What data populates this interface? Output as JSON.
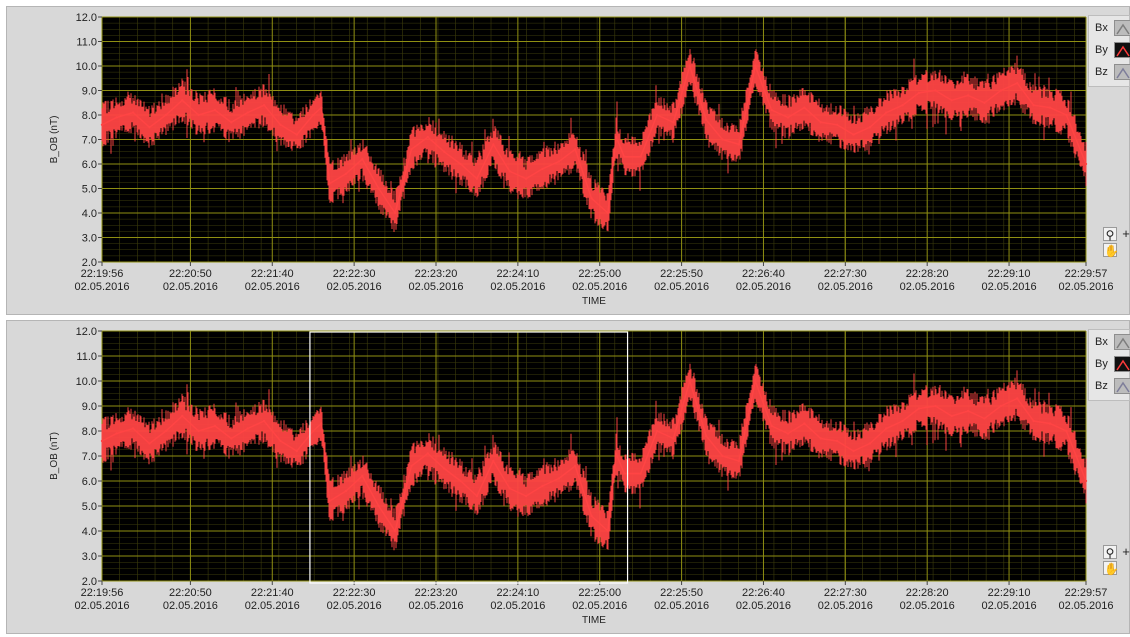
{
  "chart_data": [
    {
      "type": "line",
      "title": "",
      "xlabel": "TIME",
      "ylabel": "B_OB (nT)",
      "ylim": [
        2.0,
        12.0
      ],
      "yticks": [
        "2.0",
        "3.0",
        "4.0",
        "5.0",
        "6.0",
        "7.0",
        "8.0",
        "9.0",
        "10.0",
        "11.0",
        "12.0"
      ],
      "xticks": [
        {
          "time": "22:19:56",
          "date": "02.05.2016"
        },
        {
          "time": "22:20:50",
          "date": "02.05.2016"
        },
        {
          "time": "22:21:40",
          "date": "02.05.2016"
        },
        {
          "time": "22:22:30",
          "date": "02.05.2016"
        },
        {
          "time": "22:23:20",
          "date": "02.05.2016"
        },
        {
          "time": "22:24:10",
          "date": "02.05.2016"
        },
        {
          "time": "22:25:00",
          "date": "02.05.2016"
        },
        {
          "time": "22:25:50",
          "date": "02.05.2016"
        },
        {
          "time": "22:26:40",
          "date": "02.05.2016"
        },
        {
          "time": "22:27:30",
          "date": "02.05.2016"
        },
        {
          "time": "22:28:20",
          "date": "02.05.2016"
        },
        {
          "time": "22:29:10",
          "date": "02.05.2016"
        },
        {
          "time": "22:29:57",
          "date": "02.05.2016"
        }
      ],
      "grid": true,
      "legend_position": "right",
      "legend": [
        "Bx",
        "By",
        "Bz"
      ],
      "plot_background": "#000000",
      "grid_color": "#8f8f12",
      "series": [
        {
          "name": "By",
          "color": "#ff4444",
          "x": [
            "22:19:56",
            "22:20:05",
            "22:20:15",
            "22:20:25",
            "22:20:35",
            "22:20:45",
            "22:20:55",
            "22:21:05",
            "22:21:15",
            "22:21:25",
            "22:21:35",
            "22:21:45",
            "22:21:55",
            "22:22:05",
            "22:22:10",
            "22:22:15",
            "22:22:25",
            "22:22:35",
            "22:22:45",
            "22:22:55",
            "22:23:05",
            "22:23:15",
            "22:23:25",
            "22:23:35",
            "22:23:45",
            "22:23:55",
            "22:24:05",
            "22:24:15",
            "22:24:25",
            "22:24:35",
            "22:24:45",
            "22:24:55",
            "22:25:05",
            "22:25:10",
            "22:25:15",
            "22:25:25",
            "22:25:35",
            "22:25:45",
            "22:25:55",
            "22:26:05",
            "22:26:15",
            "22:26:25",
            "22:26:35",
            "22:26:45",
            "22:26:55",
            "22:27:05",
            "22:27:15",
            "22:27:25",
            "22:27:35",
            "22:27:45",
            "22:27:55",
            "22:28:05",
            "22:28:15",
            "22:28:25",
            "22:28:35",
            "22:28:45",
            "22:28:55",
            "22:29:05",
            "22:29:15",
            "22:29:25",
            "22:29:35",
            "22:29:45",
            "22:29:57"
          ],
          "y": [
            7.6,
            7.9,
            8.1,
            7.5,
            8.0,
            8.6,
            8.0,
            8.2,
            7.7,
            8.1,
            8.4,
            7.6,
            7.2,
            8.0,
            8.3,
            5.2,
            5.6,
            6.2,
            5.0,
            4.0,
            6.6,
            7.1,
            6.5,
            6.0,
            5.4,
            6.8,
            5.7,
            5.4,
            5.8,
            6.1,
            6.6,
            4.6,
            4.0,
            7.1,
            6.3,
            6.3,
            8.0,
            7.7,
            10.0,
            7.8,
            7.0,
            6.8,
            10.0,
            8.2,
            7.9,
            8.3,
            7.7,
            7.6,
            7.2,
            7.5,
            8.1,
            8.4,
            8.9,
            9.0,
            8.6,
            8.8,
            8.5,
            9.0,
            9.3,
            8.4,
            8.3,
            8.0,
            6.0
          ]
        }
      ]
    },
    {
      "type": "line",
      "title": "",
      "xlabel": "TIME",
      "ylabel": "B_OB (nT)",
      "ylim": [
        2.0,
        12.0
      ],
      "yticks": [
        "2.0",
        "3.0",
        "4.0",
        "5.0",
        "6.0",
        "7.0",
        "8.0",
        "9.0",
        "10.0",
        "11.0",
        "12.0"
      ],
      "xticks": [
        {
          "time": "22:19:56",
          "date": "02.05.2016"
        },
        {
          "time": "22:20:50",
          "date": "02.05.2016"
        },
        {
          "time": "22:21:40",
          "date": "02.05.2016"
        },
        {
          "time": "22:22:30",
          "date": "02.05.2016"
        },
        {
          "time": "22:23:20",
          "date": "02.05.2016"
        },
        {
          "time": "22:24:10",
          "date": "02.05.2016"
        },
        {
          "time": "22:25:00",
          "date": "02.05.2016"
        },
        {
          "time": "22:25:50",
          "date": "02.05.2016"
        },
        {
          "time": "22:26:40",
          "date": "02.05.2016"
        },
        {
          "time": "22:27:30",
          "date": "02.05.2016"
        },
        {
          "time": "22:28:20",
          "date": "02.05.2016"
        },
        {
          "time": "22:29:10",
          "date": "02.05.2016"
        },
        {
          "time": "22:29:57",
          "date": "02.05.2016"
        }
      ],
      "grid": true,
      "legend_position": "right",
      "legend": [
        "Bx",
        "By",
        "Bz"
      ],
      "plot_background": "#000000",
      "grid_color": "#8f8f12",
      "selection": {
        "start": "22:22:03",
        "end": "22:25:17"
      },
      "series": [
        {
          "name": "By",
          "color": "#ff4444",
          "x": [
            "22:19:56",
            "22:20:05",
            "22:20:15",
            "22:20:25",
            "22:20:35",
            "22:20:45",
            "22:20:55",
            "22:21:05",
            "22:21:15",
            "22:21:25",
            "22:21:35",
            "22:21:45",
            "22:21:55",
            "22:22:05",
            "22:22:10",
            "22:22:15",
            "22:22:25",
            "22:22:35",
            "22:22:45",
            "22:22:55",
            "22:23:05",
            "22:23:15",
            "22:23:25",
            "22:23:35",
            "22:23:45",
            "22:23:55",
            "22:24:05",
            "22:24:15",
            "22:24:25",
            "22:24:35",
            "22:24:45",
            "22:24:55",
            "22:25:05",
            "22:25:10",
            "22:25:15",
            "22:25:25",
            "22:25:35",
            "22:25:45",
            "22:25:55",
            "22:26:05",
            "22:26:15",
            "22:26:25",
            "22:26:35",
            "22:26:45",
            "22:26:55",
            "22:27:05",
            "22:27:15",
            "22:27:25",
            "22:27:35",
            "22:27:45",
            "22:27:55",
            "22:28:05",
            "22:28:15",
            "22:28:25",
            "22:28:35",
            "22:28:45",
            "22:28:55",
            "22:29:05",
            "22:29:15",
            "22:29:25",
            "22:29:35",
            "22:29:45",
            "22:29:57"
          ],
          "y": [
            7.6,
            7.9,
            8.1,
            7.5,
            8.0,
            8.6,
            8.0,
            8.2,
            7.7,
            8.1,
            8.4,
            7.6,
            7.2,
            8.0,
            8.3,
            5.2,
            5.6,
            6.2,
            5.0,
            4.0,
            6.6,
            7.1,
            6.5,
            6.0,
            5.4,
            6.8,
            5.7,
            5.4,
            5.8,
            6.1,
            6.6,
            4.6,
            4.0,
            7.1,
            6.3,
            6.3,
            8.0,
            7.7,
            10.0,
            7.8,
            7.0,
            6.8,
            10.0,
            8.2,
            7.9,
            8.3,
            7.7,
            7.6,
            7.2,
            7.5,
            8.1,
            8.4,
            8.9,
            9.0,
            8.6,
            8.8,
            8.5,
            9.0,
            9.3,
            8.4,
            8.3,
            8.0,
            6.0
          ]
        }
      ]
    }
  ],
  "legend_icons": {
    "Bx": "line-swatch-icon",
    "By": "line-swatch-icon",
    "Bz": "line-swatch-icon"
  },
  "tools": {
    "zoom": "zoom-icon",
    "pan": "pan-hand-icon",
    "cursor": "crosshair-icon"
  }
}
